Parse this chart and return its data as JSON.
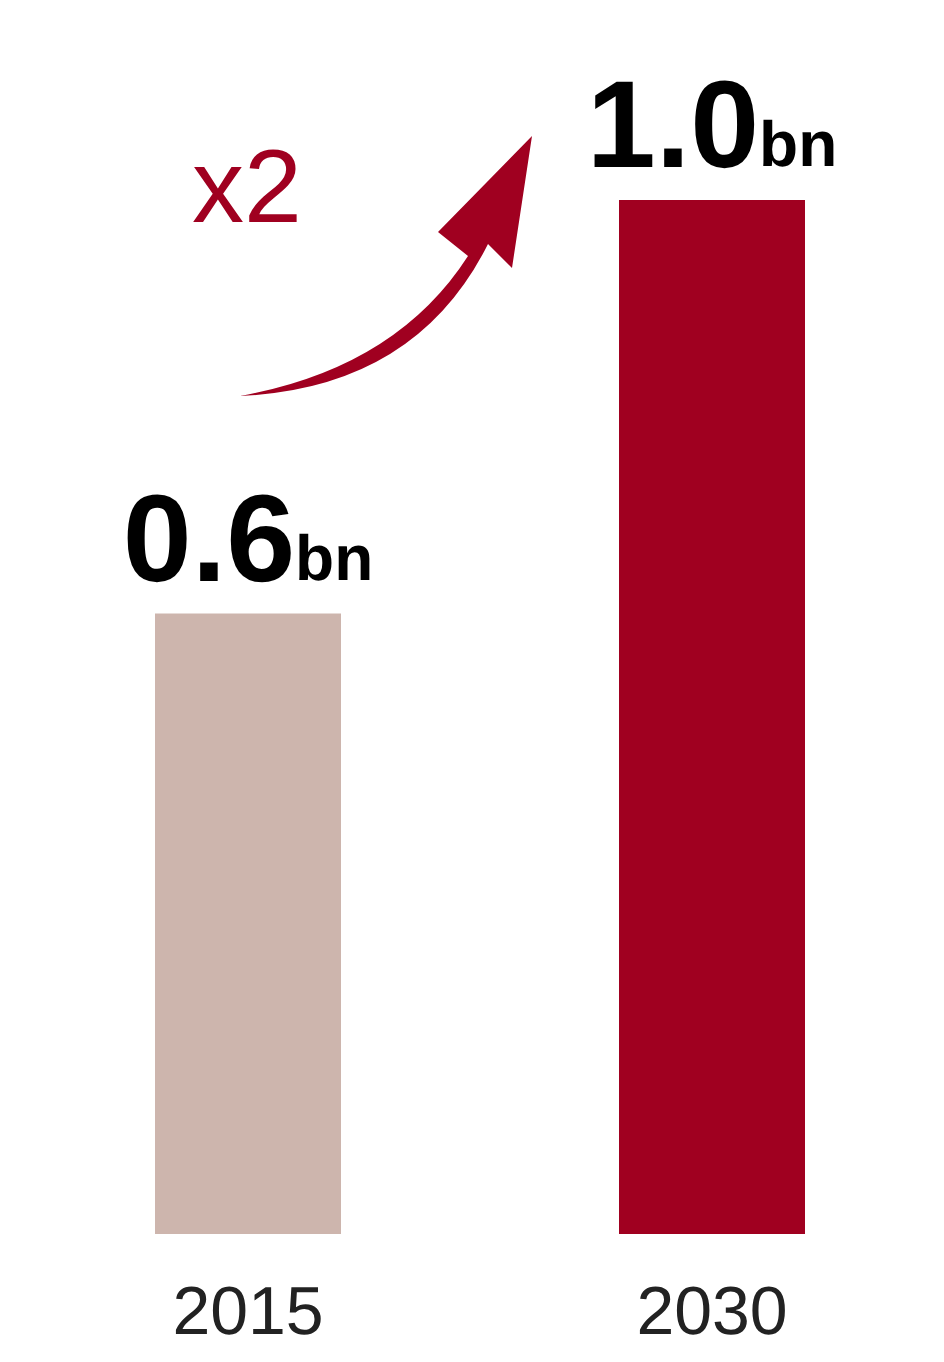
{
  "chart_data": {
    "type": "bar",
    "categories": [
      "2015",
      "2030"
    ],
    "values": [
      0.6,
      1.0
    ],
    "colors": [
      "#cdb5ad",
      "#a00020"
    ],
    "value_labels": [
      "0.6bn",
      "1.0bn"
    ],
    "annotations": [
      "x2"
    ]
  }
}
